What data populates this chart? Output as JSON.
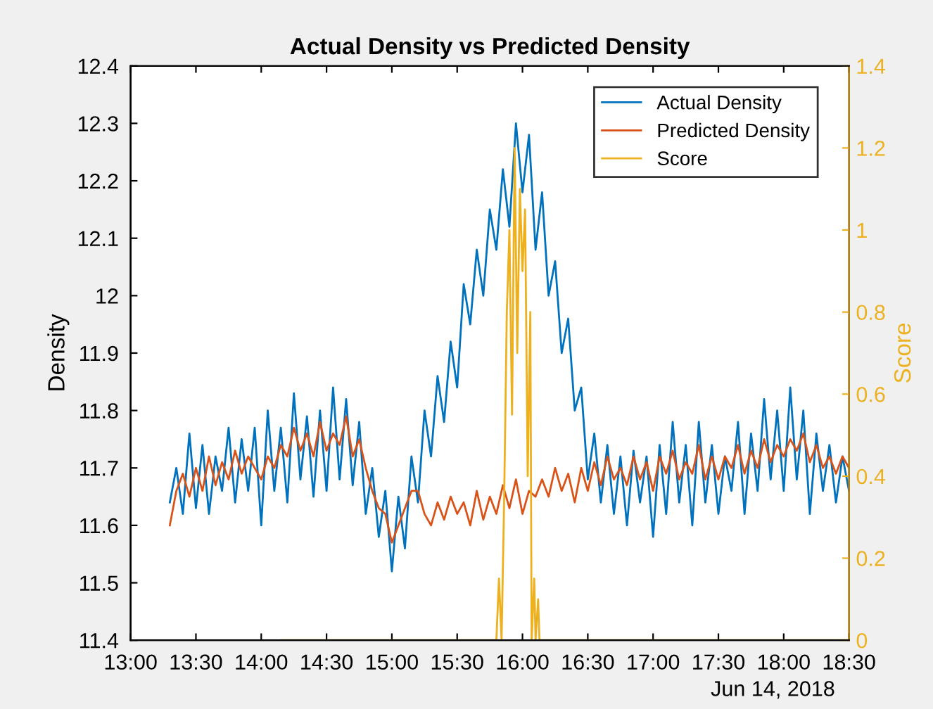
{
  "chart_data": {
    "type": "line",
    "title": "Actual Density vs Predicted Density",
    "ylabel": "Density",
    "y2label": "Score",
    "x": [
      13.3,
      13.35,
      13.4,
      13.45,
      13.5,
      13.55,
      13.6,
      13.65,
      13.7,
      13.75,
      13.8,
      13.85,
      13.9,
      13.95,
      14.0,
      14.05,
      14.1,
      14.15,
      14.2,
      14.25,
      14.3,
      14.35,
      14.4,
      14.45,
      14.5,
      14.55,
      14.6,
      14.65,
      14.7,
      14.75,
      14.8,
      14.85,
      14.9,
      14.95,
      15.0,
      15.05,
      15.1,
      15.15,
      15.2,
      15.25,
      15.3,
      15.35,
      15.4,
      15.45,
      15.5,
      15.55,
      15.6,
      15.65,
      15.7,
      15.75,
      15.8,
      15.85,
      15.9,
      15.95,
      16.0,
      16.05,
      16.1,
      16.15,
      16.2,
      16.25,
      16.3,
      16.35,
      16.4,
      16.45,
      16.5,
      16.55,
      16.6,
      16.65,
      16.7,
      16.75,
      16.8,
      16.85,
      16.9,
      16.95,
      17.0,
      17.05,
      17.1,
      17.15,
      17.2,
      17.25,
      17.3,
      17.35,
      17.4,
      17.45,
      17.5,
      17.55,
      17.6,
      17.65,
      17.7,
      17.75,
      17.8,
      17.85,
      17.9,
      17.95,
      18.0,
      18.05,
      18.1,
      18.15,
      18.2,
      18.25,
      18.3,
      18.35,
      18.4,
      18.45,
      18.5
    ],
    "series": [
      {
        "name": "Actual Density",
        "color": "#0072bd",
        "values": [
          11.64,
          11.7,
          11.62,
          11.76,
          11.63,
          11.74,
          11.62,
          11.72,
          11.66,
          11.77,
          11.64,
          11.75,
          11.66,
          11.77,
          11.6,
          11.8,
          11.66,
          11.77,
          11.64,
          11.83,
          11.68,
          11.79,
          11.65,
          11.8,
          11.66,
          11.84,
          11.68,
          11.82,
          11.67,
          11.78,
          11.62,
          11.7,
          11.58,
          11.66,
          11.52,
          11.65,
          11.56,
          11.72,
          11.64,
          11.8,
          11.72,
          11.86,
          11.78,
          11.92,
          11.84,
          12.02,
          11.95,
          12.08,
          12.0,
          12.15,
          12.08,
          12.22,
          12.12,
          12.3,
          12.18,
          12.28,
          12.08,
          12.18,
          12.0,
          12.06,
          11.9,
          11.96,
          11.8,
          11.84,
          11.68,
          11.76,
          11.64,
          11.74,
          11.62,
          11.72,
          11.6,
          11.73,
          11.64,
          11.72,
          11.58,
          11.74,
          11.62,
          11.78,
          11.64,
          11.74,
          11.6,
          11.78,
          11.64,
          11.74,
          11.62,
          11.72,
          11.66,
          11.78,
          11.62,
          11.76,
          11.66,
          11.82,
          11.68,
          11.8,
          11.66,
          11.84,
          11.68,
          11.8,
          11.62,
          11.76,
          11.66,
          11.74,
          11.64,
          11.72,
          11.66
        ]
      },
      {
        "name": "Predicted Density",
        "color": "#d95319",
        "values": [
          11.6,
          11.66,
          11.69,
          11.65,
          11.7,
          11.66,
          11.72,
          11.67,
          11.71,
          11.68,
          11.73,
          11.69,
          11.72,
          11.7,
          11.68,
          11.72,
          11.7,
          11.74,
          11.72,
          11.77,
          11.73,
          11.76,
          11.72,
          11.78,
          11.73,
          11.76,
          11.74,
          11.79,
          11.72,
          11.75,
          11.7,
          11.66,
          11.63,
          11.62,
          11.57,
          11.6,
          11.63,
          11.66,
          11.66,
          11.62,
          11.6,
          11.64,
          11.61,
          11.65,
          11.62,
          11.64,
          11.6,
          11.66,
          11.61,
          11.65,
          11.62,
          11.67,
          11.63,
          11.68,
          11.62,
          11.66,
          11.65,
          11.68,
          11.65,
          11.7,
          11.66,
          11.69,
          11.64,
          11.7,
          11.66,
          11.71,
          11.67,
          11.72,
          11.68,
          11.7,
          11.67,
          11.72,
          11.68,
          11.71,
          11.66,
          11.72,
          11.69,
          11.73,
          11.68,
          11.71,
          11.69,
          11.74,
          11.68,
          11.72,
          11.68,
          11.72,
          11.7,
          11.74,
          11.69,
          11.73,
          11.7,
          11.75,
          11.71,
          11.74,
          11.72,
          11.75,
          11.73,
          11.76,
          11.71,
          11.74,
          11.7,
          11.72,
          11.69,
          11.72,
          11.7
        ]
      },
      {
        "name": "Score",
        "color": "#edb120",
        "axis": "y2",
        "x": [
          14.15,
          15.8,
          15.82,
          15.84,
          15.86,
          15.88,
          15.9,
          15.92,
          15.94,
          15.96,
          15.98,
          16.0,
          16.02,
          16.04,
          16.06,
          16.07,
          16.09,
          16.1,
          16.12,
          16.13,
          18.5
        ],
        "values": [
          0,
          0,
          0.15,
          0,
          0.35,
          0.8,
          1.0,
          0.55,
          1.2,
          0.7,
          1.1,
          0.9,
          1.05,
          0.4,
          0.8,
          0,
          0.15,
          0,
          0.1,
          0,
          0
        ]
      }
    ],
    "xlim": [
      13,
      18.5
    ],
    "xticks": [
      {
        "value": 13,
        "label": "13:00"
      },
      {
        "value": 13.5,
        "label": "13:30"
      },
      {
        "value": 14,
        "label": "14:00"
      },
      {
        "value": 14.5,
        "label": "14:30"
      },
      {
        "value": 15,
        "label": "15:00"
      },
      {
        "value": 15.5,
        "label": "15:30"
      },
      {
        "value": 16,
        "label": "16:00"
      },
      {
        "value": 16.5,
        "label": "16:30"
      },
      {
        "value": 17,
        "label": "17:00"
      },
      {
        "value": 17.5,
        "label": "17:30"
      },
      {
        "value": 18,
        "label": "18:00"
      },
      {
        "value": 18.5,
        "label": "18:30"
      }
    ],
    "ylim": [
      11.4,
      12.4
    ],
    "yticks": [
      11.4,
      11.5,
      11.6,
      11.7,
      11.8,
      11.9,
      12,
      12.1,
      12.2,
      12.3,
      12.4
    ],
    "y2lim": [
      0,
      1.4
    ],
    "y2ticks": [
      0,
      0.2,
      0.4,
      0.6,
      0.8,
      1,
      1.2,
      1.4
    ],
    "annotations": [
      "Jun 14, 2018"
    ],
    "legend": "top right",
    "grid": false,
    "marker": "none",
    "line_style": "solid"
  }
}
